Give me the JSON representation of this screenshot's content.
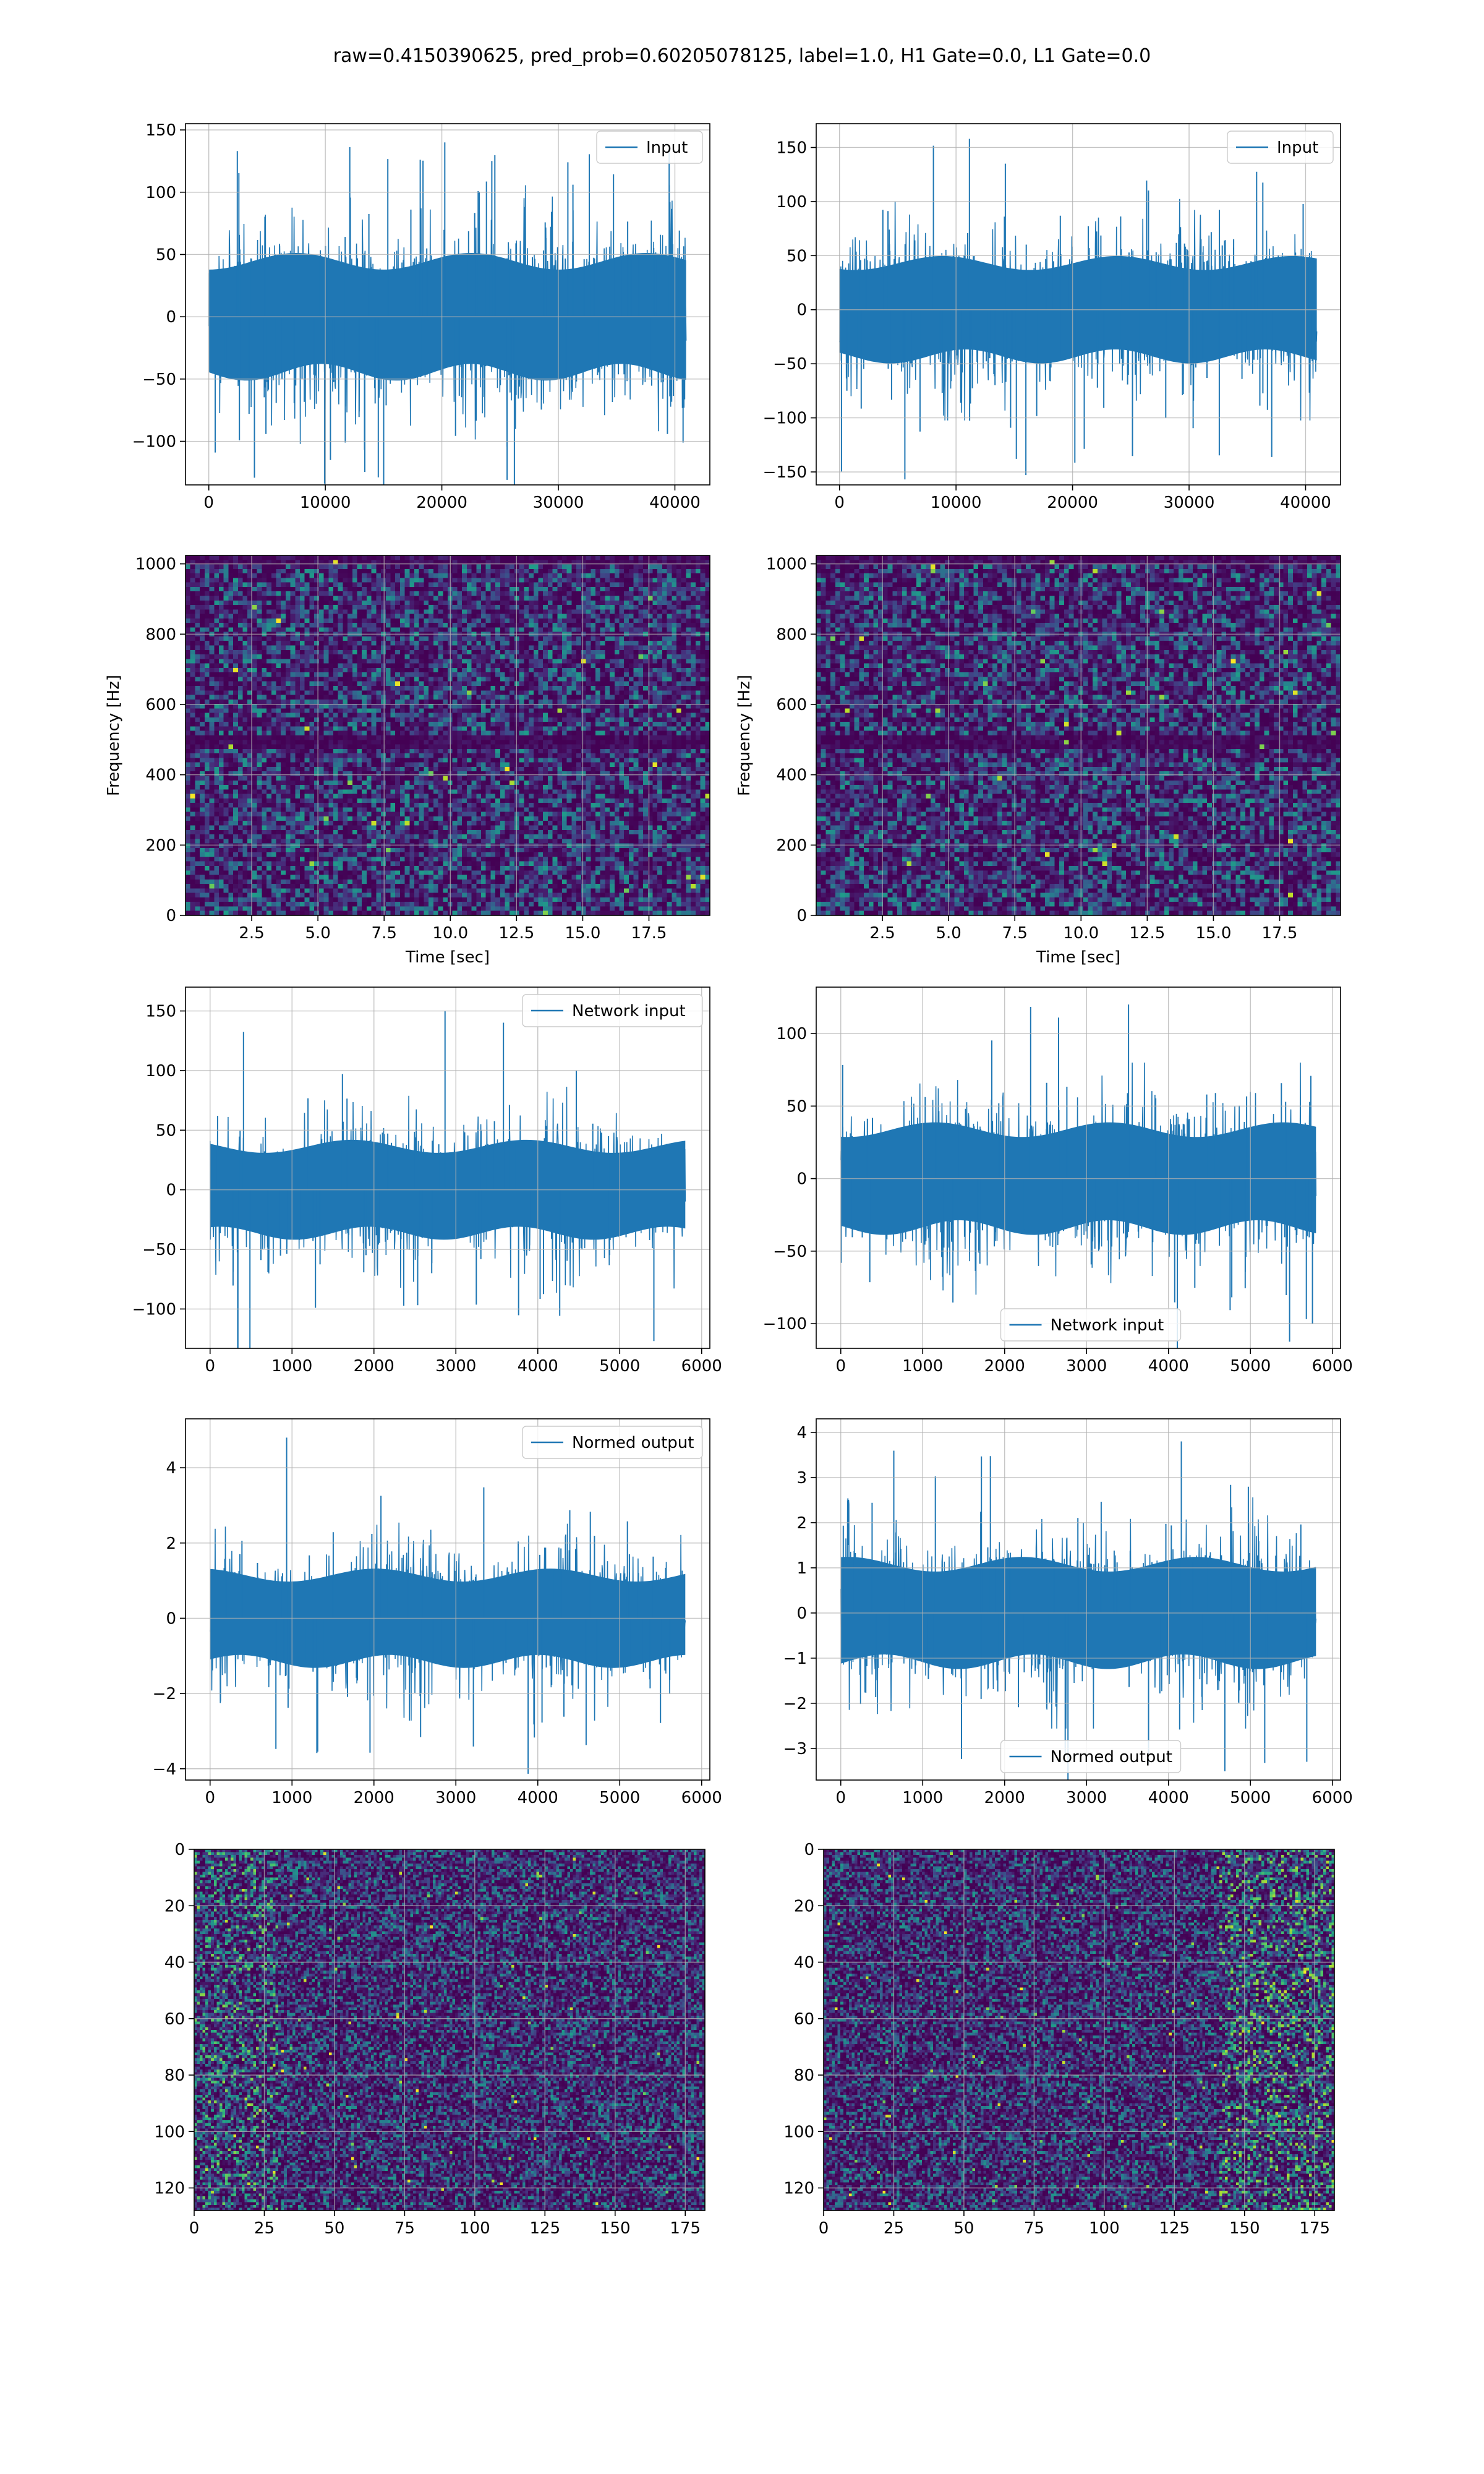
{
  "figure": {
    "title": "raw=0.4150390625, pred_prob=0.60205078125, label=1.0, H1 Gate=0.0, L1 Gate=0.0"
  },
  "colors": {
    "line": "#1f77b4",
    "grid": "#b0b0b0",
    "axes": "#000000"
  },
  "chart_data": [
    {
      "id": "h1-input",
      "type": "line",
      "xlim": [
        -2000,
        43000
      ],
      "ylim": [
        -135,
        155
      ],
      "xticks": [
        0,
        10000,
        20000,
        30000,
        40000
      ],
      "yticks": [
        -100,
        -50,
        0,
        50,
        100,
        150
      ],
      "legend": {
        "label": "Input",
        "loc": "upper right"
      },
      "series": [
        {
          "name": "Input",
          "n": 40960,
          "amp": 33,
          "spikes": 110,
          "spike_max": 140,
          "seed": 11
        }
      ],
      "xlabel": "",
      "ylabel": ""
    },
    {
      "id": "l1-input",
      "type": "line",
      "xlim": [
        -2000,
        43000
      ],
      "ylim": [
        -162,
        172
      ],
      "xticks": [
        0,
        10000,
        20000,
        30000,
        40000
      ],
      "yticks": [
        -150,
        -100,
        -50,
        0,
        50,
        100,
        150
      ],
      "legend": {
        "label": "Input",
        "loc": "upper right"
      },
      "series": [
        {
          "name": "Input",
          "n": 40960,
          "amp": 32,
          "spikes": 105,
          "spike_max": 158,
          "seed": 23
        }
      ],
      "xlabel": "",
      "ylabel": ""
    },
    {
      "id": "h1-spectrogram",
      "type": "heatmap",
      "xlim": [
        0,
        19.8
      ],
      "ylim": [
        0,
        1024
      ],
      "xticks": [
        2.5,
        5.0,
        7.5,
        10.0,
        12.5,
        15.0,
        17.5
      ],
      "yticks": [
        0,
        200,
        400,
        600,
        800,
        1000
      ],
      "xticklabels": [
        "2.5",
        "5.0",
        "7.5",
        "10.0",
        "12.5",
        "15.0",
        "17.5"
      ],
      "xlabel": "Time [sec]",
      "ylabel": "Frequency [Hz]",
      "grid_cells": [
        110,
        80
      ],
      "dark_band_hz": 500,
      "seed": 31
    },
    {
      "id": "l1-spectrogram",
      "type": "heatmap",
      "xlim": [
        0,
        19.8
      ],
      "ylim": [
        0,
        1024
      ],
      "xticks": [
        2.5,
        5.0,
        7.5,
        10.0,
        12.5,
        15.0,
        17.5
      ],
      "yticks": [
        0,
        200,
        400,
        600,
        800,
        1000
      ],
      "xticklabels": [
        "2.5",
        "5.0",
        "7.5",
        "10.0",
        "12.5",
        "15.0",
        "17.5"
      ],
      "xlabel": "Time [sec]",
      "ylabel": "Frequency [Hz]",
      "grid_cells": [
        110,
        80
      ],
      "dark_band_hz": 500,
      "seed": 47
    },
    {
      "id": "h1-network-input",
      "type": "line",
      "xlim": [
        -300,
        6100
      ],
      "ylim": [
        -133,
        170
      ],
      "xticks": [
        0,
        1000,
        2000,
        3000,
        4000,
        5000,
        6000
      ],
      "yticks": [
        -100,
        -50,
        0,
        50,
        100,
        150
      ],
      "legend": {
        "label": "Network input",
        "loc": "upper right"
      },
      "series": [
        {
          "name": "Network input",
          "n": 5800,
          "amp": 27,
          "spikes": 60,
          "spike_max": 150,
          "seed": 53
        }
      ],
      "xlabel": "",
      "ylabel": ""
    },
    {
      "id": "l1-network-input",
      "type": "line",
      "xlim": [
        -300,
        6100
      ],
      "ylim": [
        -117,
        132
      ],
      "xticks": [
        0,
        1000,
        2000,
        3000,
        4000,
        5000,
        6000
      ],
      "yticks": [
        -100,
        -50,
        0,
        50,
        100
      ],
      "legend": {
        "label": "Network input",
        "loc": "lower center"
      },
      "series": [
        {
          "name": "Network input",
          "n": 5800,
          "amp": 25,
          "spikes": 60,
          "spike_max": 120,
          "seed": 61
        }
      ],
      "xlabel": "",
      "ylabel": ""
    },
    {
      "id": "h1-normed-output",
      "type": "line",
      "xlim": [
        -300,
        6100
      ],
      "ylim": [
        -4.3,
        5.3
      ],
      "xticks": [
        0,
        1000,
        2000,
        3000,
        4000,
        5000,
        6000
      ],
      "yticks": [
        -4,
        -2,
        0,
        2,
        4
      ],
      "legend": {
        "label": "Normed output",
        "loc": "upper right"
      },
      "series": [
        {
          "name": "Normed output",
          "n": 5800,
          "amp": 0.85,
          "spikes": 60,
          "spike_max": 4.8,
          "seed": 71
        }
      ],
      "xlabel": "",
      "ylabel": ""
    },
    {
      "id": "l1-normed-output",
      "type": "line",
      "xlim": [
        -300,
        6100
      ],
      "ylim": [
        -3.7,
        4.3
      ],
      "xticks": [
        0,
        1000,
        2000,
        3000,
        4000,
        5000,
        6000
      ],
      "yticks": [
        -3,
        -2,
        -1,
        0,
        1,
        2,
        3,
        4
      ],
      "legend": {
        "label": "Normed output",
        "loc": "lower center"
      },
      "series": [
        {
          "name": "Normed output",
          "n": 5800,
          "amp": 0.8,
          "spikes": 60,
          "spike_max": 3.8,
          "seed": 83
        }
      ],
      "xlabel": "",
      "ylabel": ""
    },
    {
      "id": "h1-network-image",
      "type": "heatmap",
      "xlim": [
        0,
        182
      ],
      "ylim": [
        128,
        0
      ],
      "xticks": [
        0,
        25,
        50,
        75,
        100,
        125,
        150,
        175
      ],
      "yticks": [
        0,
        20,
        40,
        60,
        80,
        100,
        120
      ],
      "xlabel": "",
      "ylabel": "",
      "grid_cells": [
        182,
        128
      ],
      "bright_region": "left",
      "seed": 97
    },
    {
      "id": "l1-network-image",
      "type": "heatmap",
      "xlim": [
        0,
        182
      ],
      "ylim": [
        128,
        0
      ],
      "xticks": [
        0,
        25,
        50,
        75,
        100,
        125,
        150,
        175
      ],
      "yticks": [
        0,
        20,
        40,
        60,
        80,
        100,
        120
      ],
      "xlabel": "",
      "ylabel": "",
      "grid_cells": [
        182,
        128
      ],
      "bright_region": "right",
      "seed": 109
    }
  ]
}
